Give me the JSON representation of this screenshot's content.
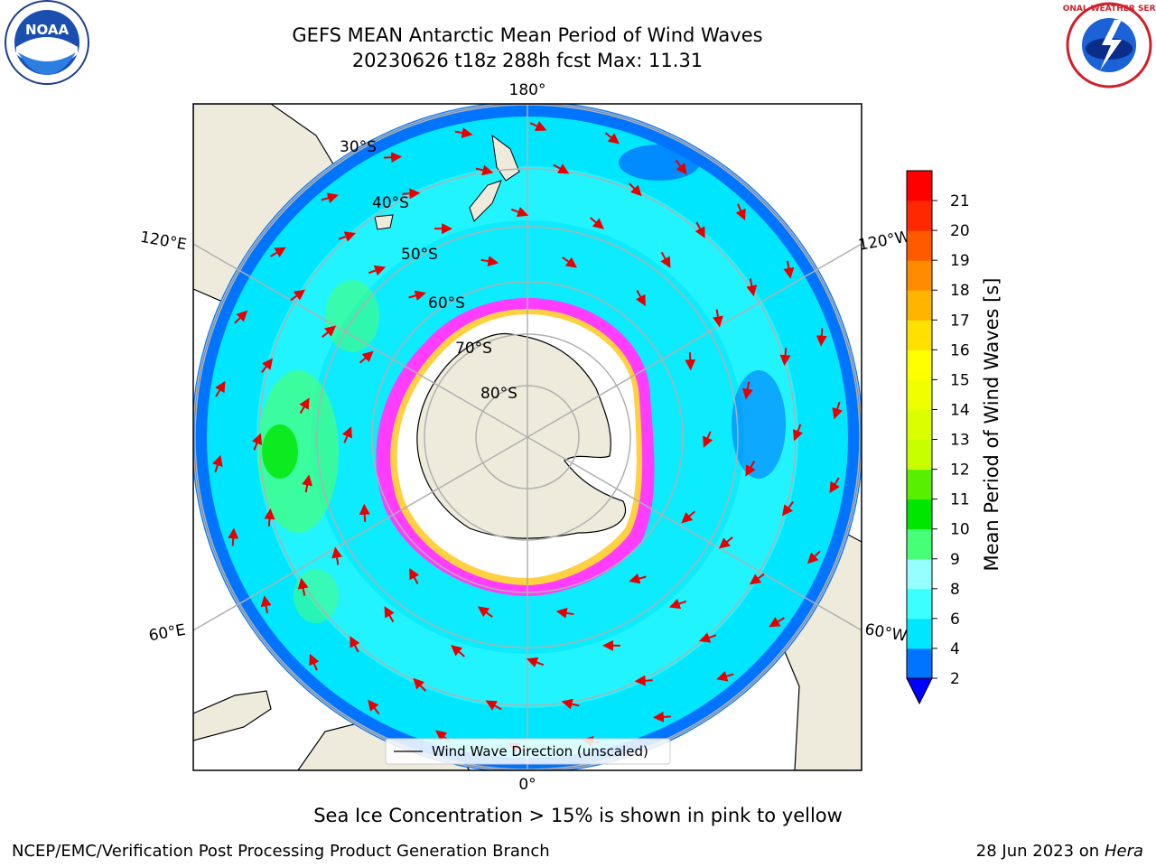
{
  "title": {
    "line1": "GEFS MEAN Antarctic Mean Period of Wind Waves",
    "line2": "20230626 t18z 288h fcst   Max: 11.31"
  },
  "logos": {
    "noaa_text": "NOAA",
    "nws_text": "NATIONAL WEATHER SERVICE"
  },
  "map": {
    "projection": "south-polar-stereographic",
    "longitude_labels": [
      "180°",
      "0°",
      "120°E",
      "120°W",
      "60°E",
      "60°W"
    ],
    "latitude_labels": [
      "30°S",
      "40°S",
      "50°S",
      "60°S",
      "70°S",
      "80°S"
    ],
    "legend_label": "Wind Wave Direction (unscaled)",
    "ocean_color": "#00ffff",
    "land_color": "#efebdc",
    "sea_ice_color": "#ff3cff",
    "arrow_color": "#e60000"
  },
  "colorbar": {
    "label": "Mean Period of Wind Waves [s]",
    "ticks": [
      "2",
      "4",
      "6",
      "8",
      "9",
      "10",
      "11",
      "12",
      "13",
      "14",
      "15",
      "16",
      "17",
      "18",
      "19",
      "20",
      "21"
    ],
    "colors": [
      "#0074ff",
      "#00e6ff",
      "#3cffff",
      "#96ffff",
      "#48ff78",
      "#00e600",
      "#58f000",
      "#c8ff00",
      "#dcff00",
      "#f0ff00",
      "#ffff00",
      "#ffe000",
      "#ffb400",
      "#ff8c00",
      "#ff5a00",
      "#ff2800",
      "#ff0000"
    ],
    "under_color": "#0000ff"
  },
  "caption": "Sea Ice Concentration > 15% is shown in pink to yellow",
  "footer": {
    "left": "NCEP/EMC/Verification Post Processing Product Generation Branch",
    "right_date": "28 Jun 2023 on",
    "right_host": "Hera"
  }
}
